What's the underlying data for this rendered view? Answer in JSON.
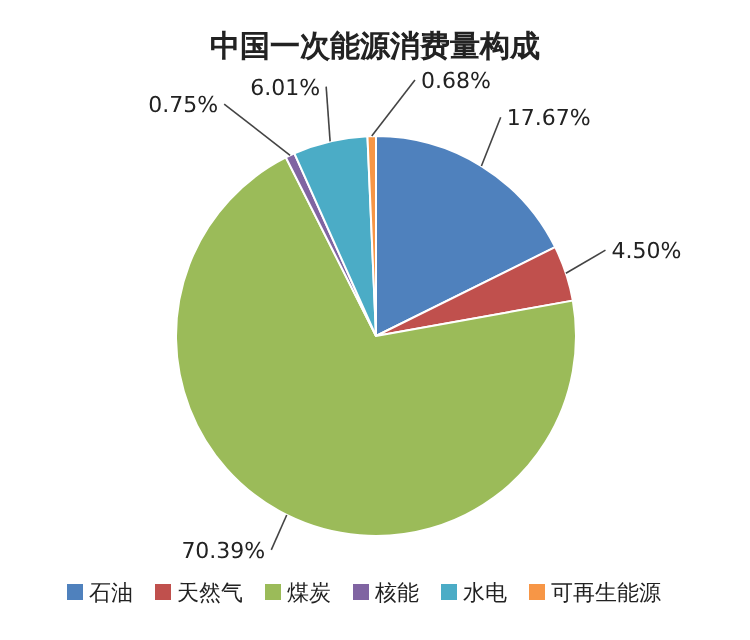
{
  "chart_data": {
    "type": "pie",
    "title": "中国一次能源消费量构成",
    "categories": [
      "石油",
      "天然气",
      "煤炭",
      "核能",
      "水电",
      "可再生能源"
    ],
    "values": [
      17.67,
      4.5,
      70.39,
      0.75,
      6.01,
      0.68
    ],
    "value_labels": [
      "17.67%",
      "4.50%",
      "70.39%",
      "0.75%",
      "6.01%",
      "0.68%"
    ],
    "colors": [
      "#4f81bd",
      "#c0504d",
      "#9bbb59",
      "#8064a2",
      "#4bacc6",
      "#f79646"
    ],
    "legend": "bottom"
  }
}
